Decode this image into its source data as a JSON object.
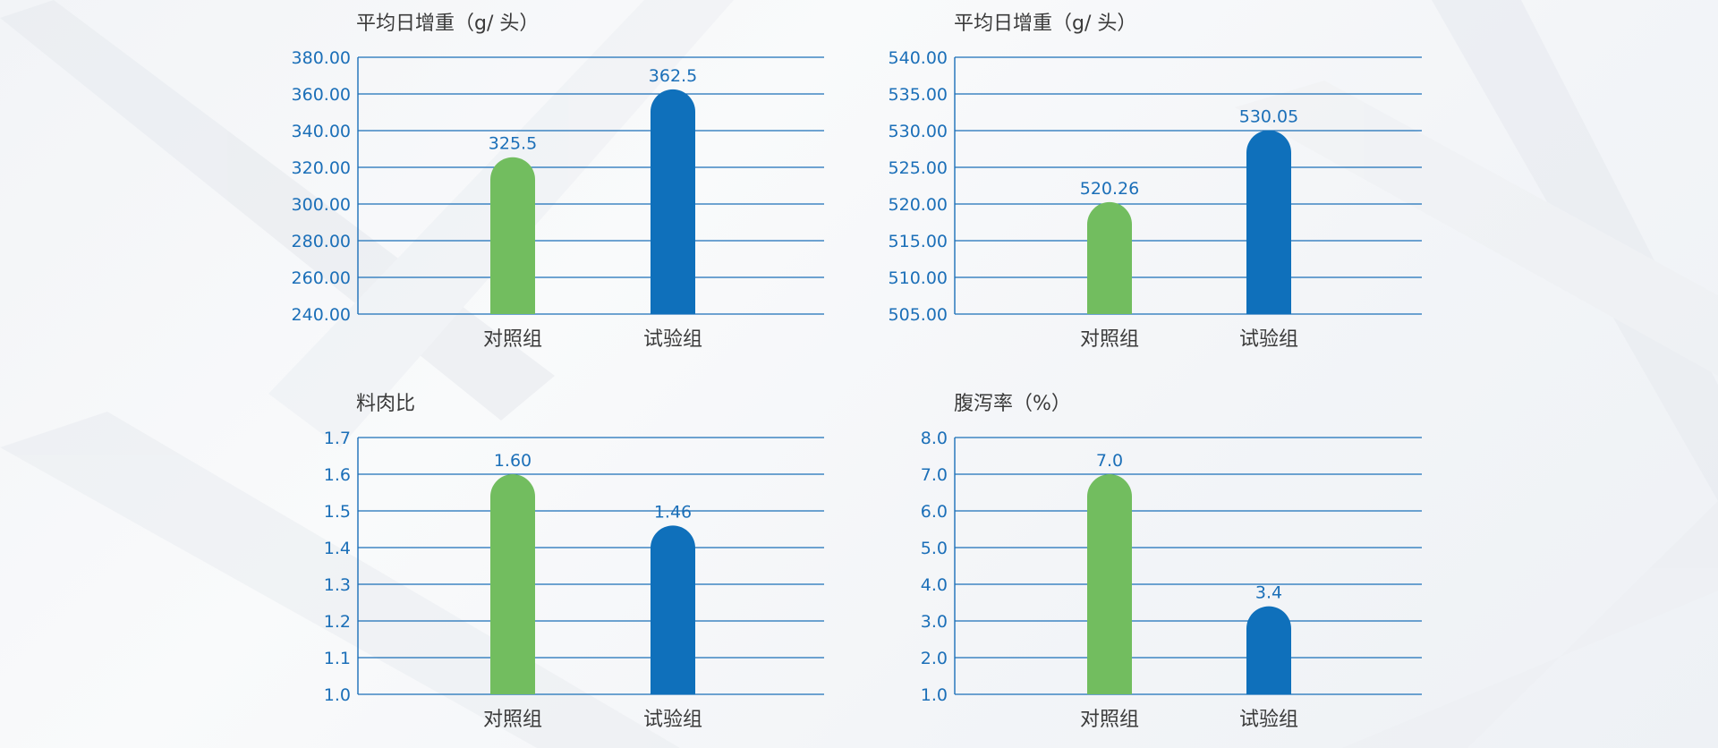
{
  "colors": {
    "control": "#72bd5f",
    "trial": "#0f70bb",
    "grid": "#1b6fb8",
    "label": "#1b6fb8",
    "title": "#3a3a3a"
  },
  "chart_data": [
    {
      "type": "bar",
      "title": "平均日增重（g/ 头）",
      "categories": [
        "对照组",
        "试验组"
      ],
      "values": [
        325.5,
        362.5
      ],
      "value_labels": [
        "325.5",
        "362.5"
      ],
      "ylim": [
        240,
        380
      ],
      "yticks": [
        "240.00",
        "260.00",
        "280.00",
        "300.00",
        "320.00",
        "340.00",
        "360.00",
        "380.00"
      ],
      "grid": true
    },
    {
      "type": "bar",
      "title": "平均日增重（g/ 头）",
      "categories": [
        "对照组",
        "试验组"
      ],
      "values": [
        520.26,
        530.05
      ],
      "value_labels": [
        "520.26",
        "530.05"
      ],
      "ylim": [
        505,
        540
      ],
      "yticks": [
        "505.00",
        "510.00",
        "515.00",
        "520.00",
        "525.00",
        "530.00",
        "535.00",
        "540.00"
      ],
      "grid": true
    },
    {
      "type": "bar",
      "title": "料肉比",
      "categories": [
        "对照组",
        "试验组"
      ],
      "values": [
        1.6,
        1.46
      ],
      "value_labels": [
        "1.60",
        "1.46"
      ],
      "ylim": [
        1.0,
        1.7
      ],
      "yticks": [
        "1.0",
        "1.1",
        "1.2",
        "1.3",
        "1.4",
        "1.5",
        "1.6",
        "1.7"
      ],
      "grid": true
    },
    {
      "type": "bar",
      "title": "腹泻率（%）",
      "categories": [
        "对照组",
        "试验组"
      ],
      "values": [
        7.0,
        3.4
      ],
      "value_labels": [
        "7.0",
        "3.4"
      ],
      "ylim": [
        1.0,
        8.0
      ],
      "yticks": [
        "1.0",
        "2.0",
        "3.0",
        "4.0",
        "5.0",
        "6.0",
        "7.0",
        "8.0"
      ],
      "grid": true
    }
  ]
}
